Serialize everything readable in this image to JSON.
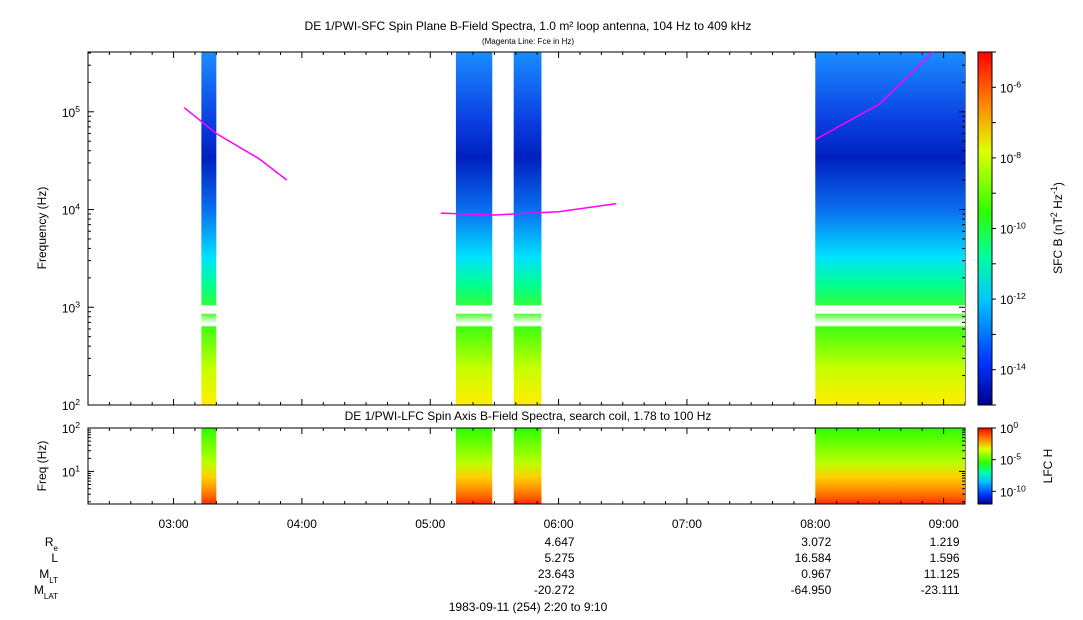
{
  "chart_data": [
    {
      "type": "heatmap",
      "title": "DE 1/PWI-SFC  Spin Plane B-Field Spectra, 1.0 m² loop antenna, 104 Hz to 409 kHz",
      "subtitle": "(Magenta Line: Fce in Hz)",
      "ylabel": "Frequency (Hz)",
      "yscale": "log",
      "ylim": [
        100,
        409000
      ],
      "yticks": [
        {
          "v": 100,
          "b": "10",
          "e": "2"
        },
        {
          "v": 1000,
          "b": "10",
          "e": "3"
        },
        {
          "v": 10000,
          "b": "10",
          "e": "4"
        },
        {
          "v": 100000,
          "b": "10",
          "e": "5"
        }
      ],
      "colorbar": {
        "label_parts": [
          {
            "t": "SFC B (nT"
          },
          {
            "t": "2",
            "sup": true
          },
          {
            "t": " Hz"
          },
          {
            "t": "-1",
            "sup": true
          },
          {
            "t": ")"
          }
        ],
        "range_exp": [
          -15,
          -5
        ],
        "ticks": [
          {
            "b": "10",
            "e": "-6",
            "v": -6
          },
          {
            "b": "10",
            "e": "-8",
            "v": -8
          },
          {
            "b": "10",
            "e": "-10",
            "v": -10
          },
          {
            "b": "10",
            "e": "-12",
            "v": -12
          },
          {
            "b": "10",
            "e": "-14",
            "v": -14
          }
        ]
      },
      "data_segments": [
        {
          "start": "03:13",
          "end": "03:20",
          "level_exp": -11
        },
        {
          "start": "05:12",
          "end": "05:29",
          "level_exp": -11.5
        },
        {
          "start": "05:39",
          "end": "05:52",
          "level_exp": -11.5
        },
        {
          "start": "08:00",
          "end": "09:10",
          "level_exp": -11
        }
      ],
      "fce_line": [
        {
          "x": "03:05",
          "y": 110000
        },
        {
          "x": "03:20",
          "y": 60000
        },
        {
          "x": "03:40",
          "y": 33000
        },
        {
          "x": "03:53",
          "y": 20000
        },
        {
          "x": "05:05",
          "y": 9200
        },
        {
          "x": "05:30",
          "y": 8800
        },
        {
          "x": "06:00",
          "y": 9500
        },
        {
          "x": "06:27",
          "y": 11500
        },
        {
          "x": "08:00",
          "y": 52000
        },
        {
          "x": "08:30",
          "y": 120000
        },
        {
          "x": "08:55",
          "y": 409000
        }
      ]
    },
    {
      "type": "heatmap",
      "title": "DE 1/PWI-LFC  Spin Axis B-Field Spectra, search coil, 1.78 to 100 Hz",
      "ylabel": "Freq (Hz)",
      "yscale": "log",
      "ylim": [
        1.78,
        100
      ],
      "yticks": [
        {
          "v": 10,
          "b": "10",
          "e": "1"
        },
        {
          "v": 100,
          "b": "10",
          "e": "2"
        }
      ],
      "colorbar": {
        "label": "LFC H",
        "range_exp": [
          -12,
          0
        ],
        "ticks": [
          {
            "b": "10",
            "e": "0",
            "v": 0
          },
          {
            "b": "10",
            "e": "-5",
            "v": -5
          },
          {
            "b": "10",
            "e": "-10",
            "v": -10
          }
        ]
      },
      "data_segments": [
        {
          "start": "03:13",
          "end": "03:20"
        },
        {
          "start": "05:12",
          "end": "05:29"
        },
        {
          "start": "05:39",
          "end": "05:52"
        },
        {
          "start": "08:00",
          "end": "09:10"
        }
      ]
    }
  ],
  "time_axis": {
    "range": [
      "02:20",
      "09:10"
    ],
    "ticks": [
      "03:00",
      "04:00",
      "05:00",
      "06:00",
      "07:00",
      "08:00",
      "09:00"
    ]
  },
  "ephemeris": {
    "rows": [
      {
        "name": "R",
        "sub": "e",
        "values": [
          "4.647",
          "3.072",
          "1.219"
        ]
      },
      {
        "name": "L",
        "sub": "",
        "values": [
          "5.275",
          "16.584",
          "1.596"
        ]
      },
      {
        "name": "M",
        "sub": "LT",
        "values": [
          "23.643",
          "0.967",
          "11.125"
        ]
      },
      {
        "name": "M",
        "sub": "LAT",
        "values": [
          "-20.272",
          "-64.950",
          "-23.111"
        ]
      }
    ],
    "at_times": [
      "06:00",
      "08:00",
      "09:00"
    ]
  },
  "footer": "1983-09-11 (254) 2:20 to 9:10"
}
